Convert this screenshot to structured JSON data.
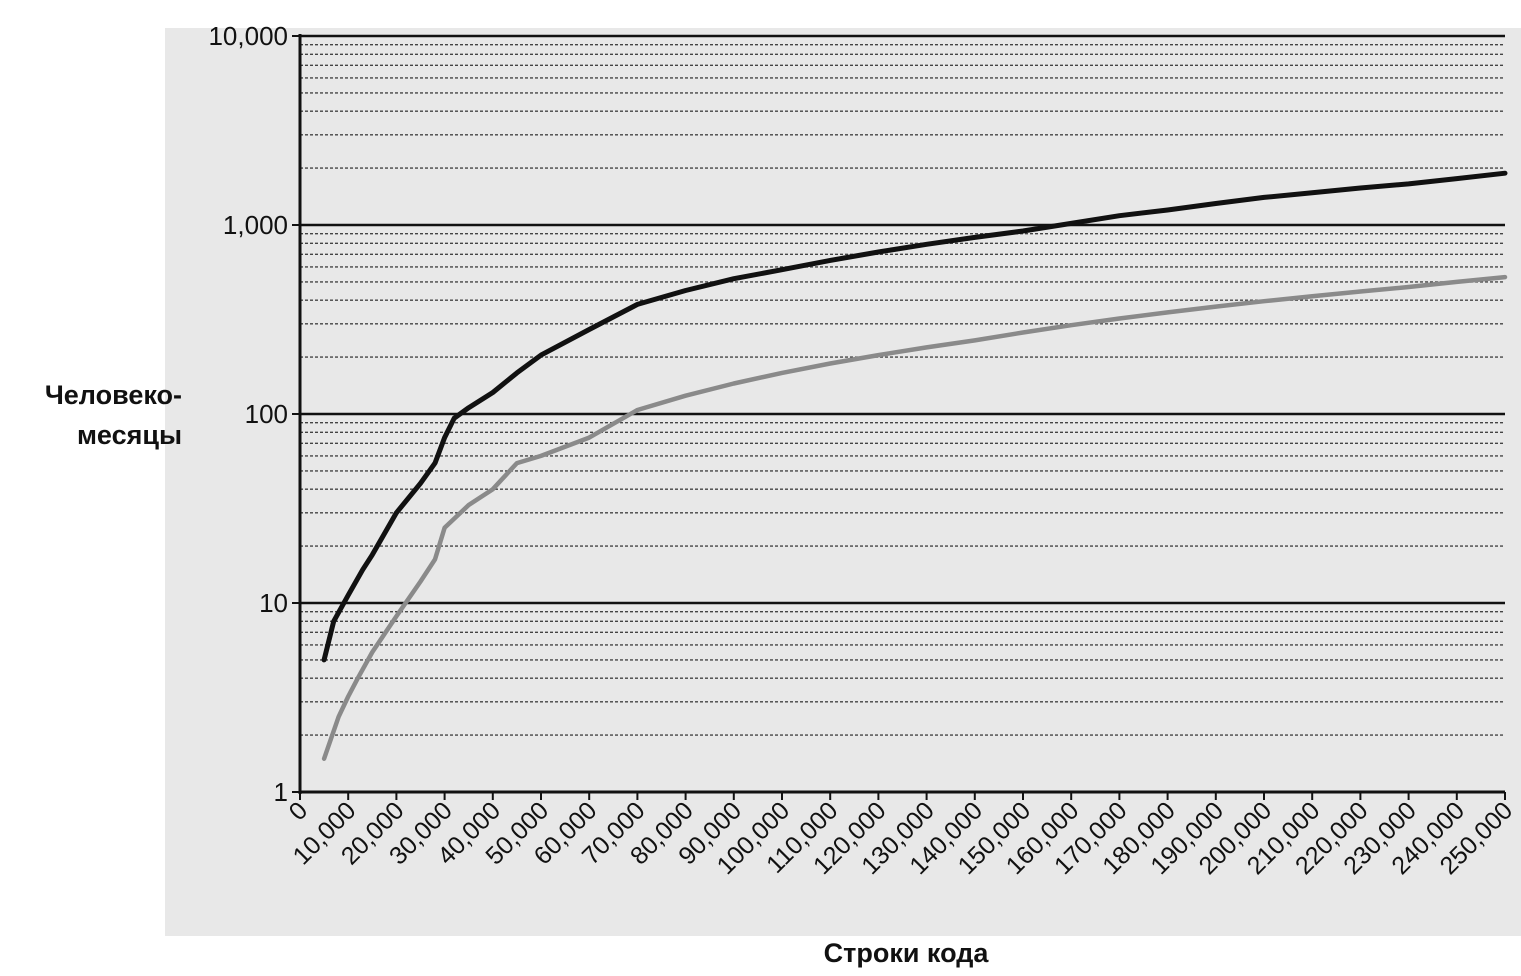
{
  "chart_data": {
    "type": "line",
    "title": "",
    "xlabel": "Строки кода",
    "ylabel_lines": [
      "Человеко-",
      "месяцы"
    ],
    "xlim": [
      0,
      250000
    ],
    "ylim": [
      1,
      10000
    ],
    "y_scale": "log",
    "x_ticks": [
      0,
      10000,
      20000,
      30000,
      40000,
      50000,
      60000,
      70000,
      80000,
      90000,
      100000,
      110000,
      120000,
      130000,
      140000,
      150000,
      160000,
      170000,
      180000,
      190000,
      200000,
      210000,
      220000,
      230000,
      240000,
      250000
    ],
    "x_tick_labels": [
      "0",
      "10,000",
      "20,000",
      "30,000",
      "40,000",
      "50,000",
      "60,000",
      "70,000",
      "80,000",
      "90,000",
      "100,000",
      "110,000",
      "120,000",
      "130,000",
      "140,000",
      "150,000",
      "160,000",
      "170,000",
      "180,000",
      "190,000",
      "200,000",
      "210,000",
      "220,000",
      "230,000",
      "240,000",
      "250,000"
    ],
    "y_ticks": [
      1,
      10,
      100,
      1000,
      10000
    ],
    "y_tick_labels": [
      "1",
      "10",
      "100",
      "1,000",
      "10,000"
    ],
    "grid": true,
    "legend": "none",
    "series": [
      {
        "color": "#111111",
        "x": [
          5000,
          7000,
          10000,
          13000,
          15000,
          20000,
          25000,
          28000,
          30000,
          32000,
          35000,
          40000,
          45000,
          50000,
          60000,
          70000,
          80000,
          90000,
          100000,
          110000,
          120000,
          130000,
          140000,
          150000,
          160000,
          170000,
          180000,
          190000,
          200000,
          210000,
          220000,
          230000,
          240000,
          250000
        ],
        "y": [
          5,
          8,
          11,
          15,
          18,
          30,
          43,
          55,
          75,
          95,
          108,
          130,
          165,
          205,
          280,
          380,
          450,
          520,
          580,
          650,
          720,
          790,
          860,
          930,
          1020,
          1120,
          1200,
          1300,
          1400,
          1480,
          1570,
          1650,
          1760,
          1880
        ]
      },
      {
        "color": "#8a8a8a",
        "x": [
          5000,
          8000,
          10000,
          12000,
          15000,
          20000,
          25000,
          28000,
          30000,
          35000,
          40000,
          45000,
          50000,
          60000,
          70000,
          80000,
          90000,
          100000,
          110000,
          120000,
          130000,
          140000,
          150000,
          160000,
          170000,
          180000,
          190000,
          200000,
          210000,
          220000,
          230000,
          240000,
          250000
        ],
        "y": [
          1.5,
          2.5,
          3.2,
          4,
          5.5,
          8.5,
          13,
          17,
          25,
          33,
          40,
          55,
          60,
          75,
          105,
          125,
          145,
          165,
          185,
          205,
          225,
          245,
          270,
          295,
          320,
          345,
          370,
          395,
          420,
          445,
          470,
          500,
          530
        ]
      }
    ]
  }
}
